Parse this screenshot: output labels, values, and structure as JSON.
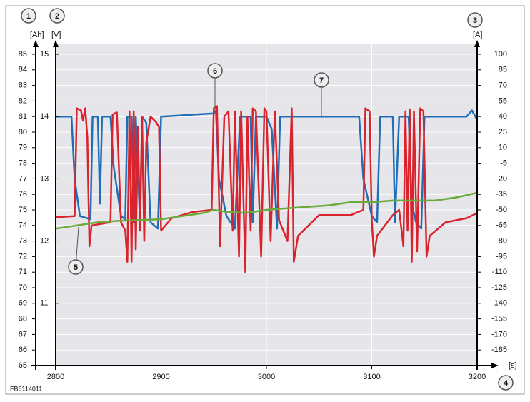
{
  "chart_data": {
    "type": "line",
    "grid": true,
    "x_label": "[s]",
    "y_label": "[Ah]",
    "y2_label": "[V]",
    "y3_label": "[A]",
    "figure_id": "FB6114011",
    "callouts": [
      "1",
      "2",
      "3",
      "4",
      "5",
      "6",
      "7"
    ],
    "xlim": [
      2800,
      3200
    ],
    "xticks": [
      2800,
      2900,
      3000,
      3100,
      3200
    ],
    "ylim": [
      65,
      85
    ],
    "yticks": [
      65,
      66,
      67,
      68,
      69,
      70,
      71,
      72,
      73,
      74,
      75,
      76,
      77,
      78,
      79,
      80,
      81,
      82,
      83,
      84,
      85
    ],
    "y2lim": [
      10,
      15
    ],
    "y2ticks": [
      11,
      12,
      13,
      14,
      15
    ],
    "y3lim": [
      -200,
      100
    ],
    "y3ticks": [
      -185,
      -170,
      -155,
      -140,
      -125,
      -110,
      -95,
      -80,
      -65,
      -50,
      -35,
      -20,
      -5,
      10,
      25,
      40,
      55,
      70,
      85,
      100
    ],
    "series": [
      {
        "color": "#1f6fb8",
        "axis": "y2",
        "x": [
          2800,
          2815,
          2818,
          2823,
          2833,
          2835,
          2840,
          2842,
          2844,
          2852,
          2855,
          2862,
          2866,
          2868,
          2872,
          2874,
          2876,
          2880,
          2882,
          2886,
          2890,
          2897,
          2900,
          2950,
          2952,
          2955,
          2962,
          2970,
          2975,
          2985,
          2987,
          2990,
          3000,
          3005,
          3010,
          3013,
          3040,
          3080,
          3088,
          3092,
          3100,
          3105,
          3108,
          3120,
          3122,
          3126,
          3135,
          3138,
          3142,
          3147,
          3150,
          3190,
          3195,
          3200
        ],
        "values": [
          14.0,
          14.0,
          13.0,
          12.4,
          12.35,
          14.0,
          14.0,
          12.6,
          14.0,
          14.0,
          13.2,
          12.4,
          12.35,
          14.0,
          14.0,
          12.3,
          14.0,
          12.3,
          14.0,
          13.9,
          12.3,
          12.2,
          14.0,
          14.05,
          14.1,
          13.0,
          12.4,
          12.2,
          14.0,
          14.0,
          12.3,
          14.0,
          14.0,
          13.8,
          12.2,
          14.0,
          14.0,
          14.0,
          14.0,
          13.0,
          12.4,
          12.3,
          14.0,
          14.0,
          12.3,
          14.0,
          14.0,
          12.6,
          12.3,
          12.2,
          14.0,
          14.0,
          14.1,
          13.95
        ]
      },
      {
        "color": "#d9232d",
        "axis": "y3",
        "x": [
          2800,
          2818,
          2820,
          2824,
          2826,
          2828,
          2830,
          2832,
          2834,
          2852,
          2854,
          2858,
          2862,
          2866,
          2868,
          2870,
          2872,
          2874,
          2876,
          2878,
          2880,
          2882,
          2884,
          2886,
          2890,
          2895,
          2898,
          2900,
          2910,
          2930,
          2948,
          2950,
          2953,
          2956,
          2960,
          2964,
          2968,
          2970,
          2974,
          2976,
          2980,
          2982,
          2985,
          2987,
          2990,
          2995,
          2998,
          3000,
          3004,
          3008,
          3012,
          3020,
          3024,
          3026,
          3030,
          3050,
          3080,
          3092,
          3094,
          3098,
          3100,
          3102,
          3105,
          3120,
          3126,
          3130,
          3132,
          3134,
          3136,
          3138,
          3140,
          3143,
          3146,
          3149,
          3152,
          3155,
          3170,
          3190,
          3200
        ],
        "values": [
          -57,
          -56,
          48,
          46,
          36,
          48,
          20,
          -85,
          -65,
          -62,
          42,
          44,
          -62,
          -70,
          -100,
          45,
          -100,
          45,
          -88,
          30,
          -70,
          40,
          -80,
          15,
          40,
          35,
          30,
          -70,
          -58,
          -52,
          -50,
          48,
          50,
          -85,
          40,
          45,
          -70,
          45,
          -95,
          45,
          -110,
          40,
          -70,
          48,
          45,
          -95,
          48,
          45,
          -80,
          45,
          -60,
          -80,
          48,
          -100,
          -75,
          -55,
          -55,
          -50,
          48,
          45,
          -60,
          -95,
          -75,
          -55,
          -50,
          -85,
          45,
          -70,
          47,
          -100,
          45,
          -90,
          48,
          45,
          -95,
          -75,
          -62,
          -58,
          -53
        ]
      },
      {
        "color": "#6aaa3a",
        "axis": "y",
        "x": [
          2800,
          2820,
          2840,
          2860,
          2880,
          2900,
          2920,
          2940,
          2950,
          2960,
          2980,
          3000,
          3020,
          3040,
          3060,
          3080,
          3100,
          3120,
          3140,
          3160,
          3180,
          3200
        ],
        "values": [
          73.8,
          74.0,
          74.2,
          74.3,
          74.35,
          74.4,
          74.6,
          74.8,
          75.0,
          74.9,
          74.8,
          75.0,
          75.1,
          75.2,
          75.3,
          75.5,
          75.5,
          75.6,
          75.6,
          75.6,
          75.8,
          76.1
        ]
      }
    ]
  }
}
